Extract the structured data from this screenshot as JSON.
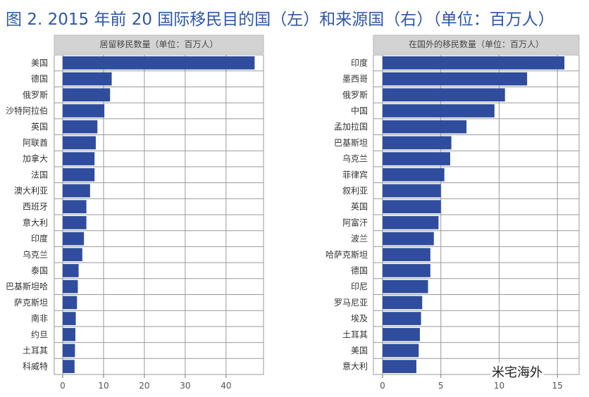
{
  "title": "图 2. 2015 年前 20 国际移民目的国（左）和来源国（右）（单位：百万人）",
  "watermark": "米宅海外",
  "chart_data": [
    {
      "type": "bar",
      "orientation": "horizontal",
      "title": "居留移民数量（单位：百万人）",
      "categories": [
        "美国",
        "德国",
        "俄罗斯",
        "沙特阿拉伯",
        "英国",
        "阿联酋",
        "加拿大",
        "法国",
        "澳大利亚",
        "西班牙",
        "意大利",
        "印度",
        "乌克兰",
        "泰国",
        "巴基斯坦哈",
        "萨克斯坦",
        "南非",
        "约旦",
        "土耳其",
        "科威特"
      ],
      "values": [
        47,
        12,
        11.6,
        10.2,
        8.5,
        8.1,
        7.8,
        7.8,
        6.7,
        5.8,
        5.8,
        5.2,
        4.8,
        3.9,
        3.7,
        3.5,
        3.2,
        3.1,
        3.0,
        2.9
      ],
      "xlim": [
        0,
        49
      ],
      "ticks": [
        0,
        10,
        20,
        30,
        40
      ],
      "color": "#2f4d9c",
      "grid": true
    },
    {
      "type": "bar",
      "orientation": "horizontal",
      "title": "在国外的移民数量（单位：百万人）",
      "categories": [
        "印度",
        "墨西哥",
        "俄罗斯",
        "中国",
        "孟加拉国",
        "巴基斯坦",
        "乌克兰",
        "菲律宾",
        "叙利亚",
        "英国",
        "阿富汗",
        "波兰",
        "哈萨克斯坦",
        "德国",
        "印尼",
        "罗马尼亚",
        "埃及",
        "土耳其",
        "美国",
        "意大利"
      ],
      "values": [
        15.6,
        12.4,
        10.5,
        9.6,
        7.2,
        5.9,
        5.8,
        5.3,
        5.0,
        5.0,
        4.8,
        4.4,
        4.1,
        4.1,
        3.9,
        3.4,
        3.3,
        3.2,
        3.1,
        2.9
      ],
      "xlim": [
        0,
        16.5
      ],
      "ticks": [
        0,
        5,
        10,
        15
      ],
      "color": "#2f4d9c",
      "grid": true
    }
  ]
}
